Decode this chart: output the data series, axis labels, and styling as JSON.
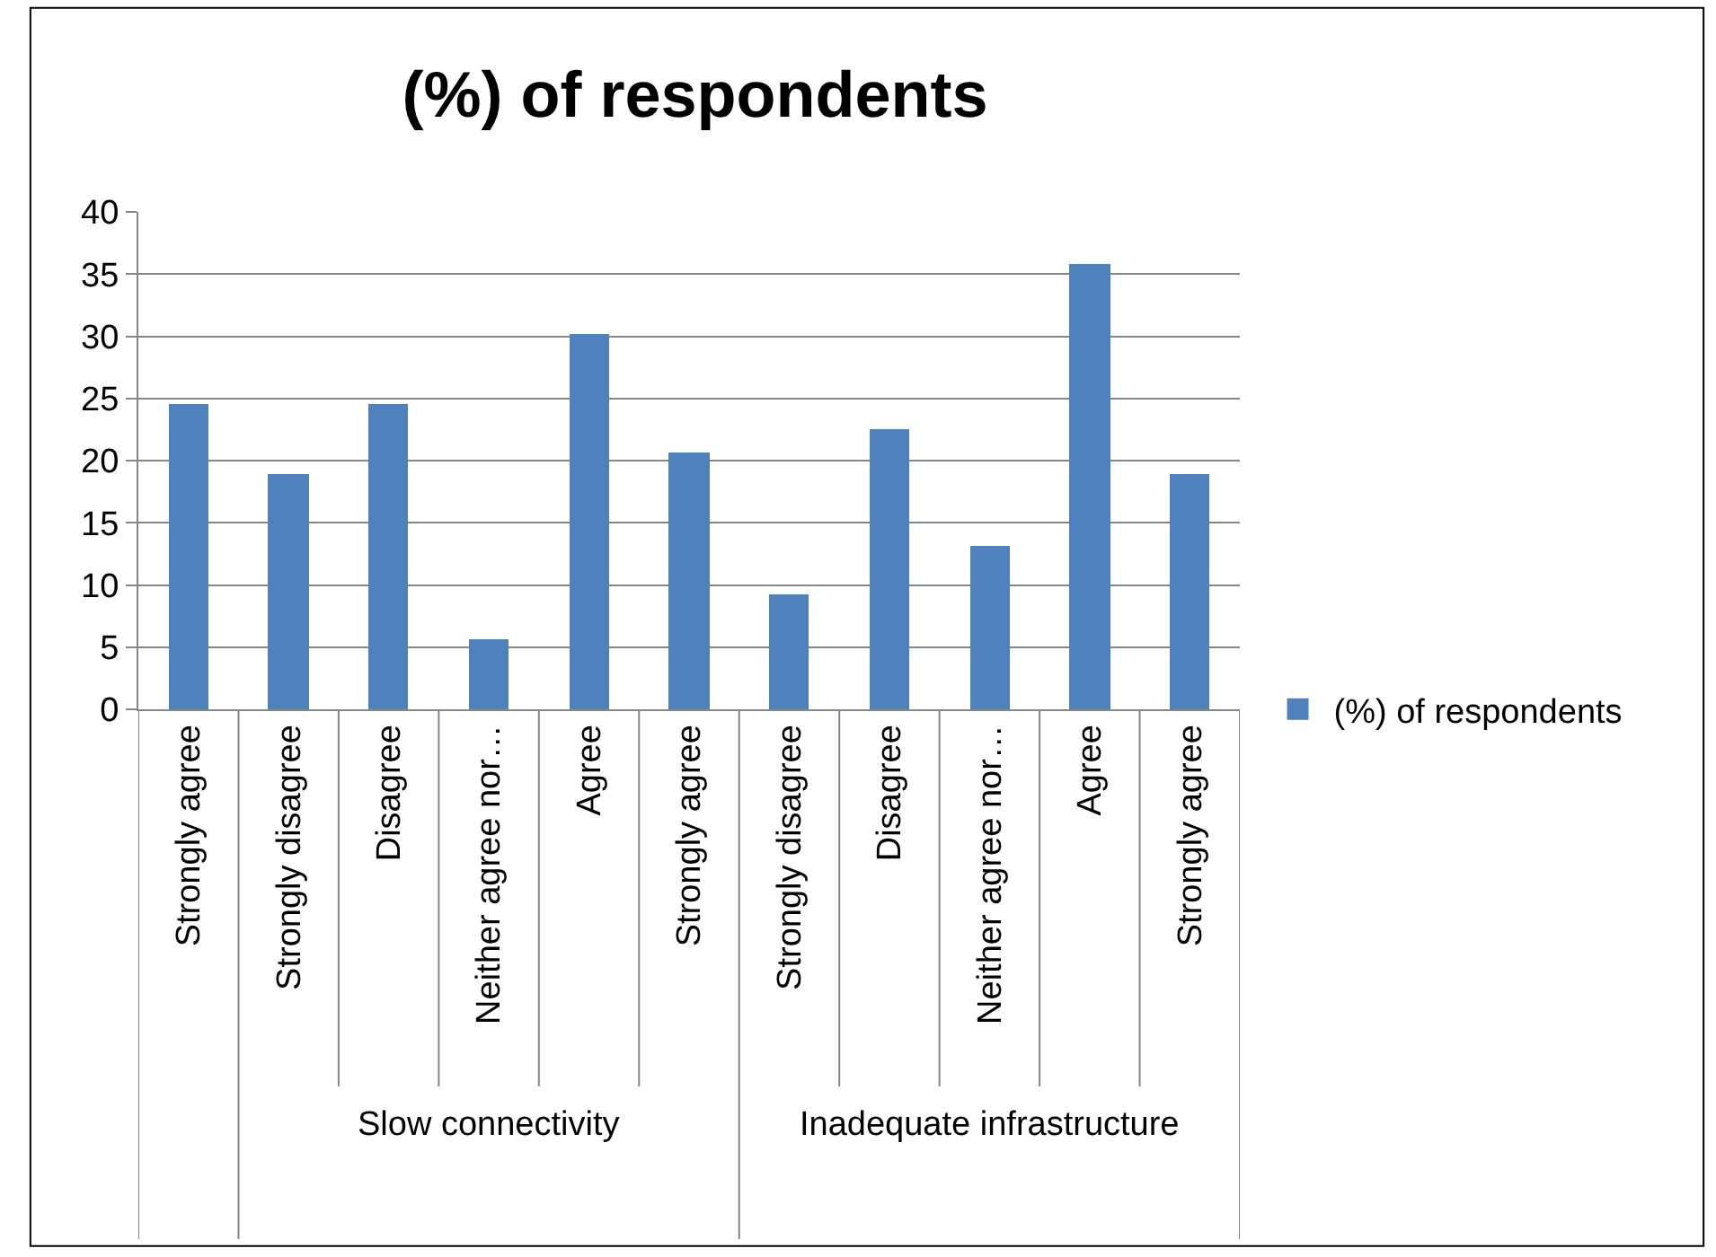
{
  "chart_data": {
    "type": "bar",
    "title": "(%) of respondents",
    "categories": [
      "Strongly agree",
      "Strongly disagree",
      "Disagree",
      "Neither agree nor…",
      "Agree",
      "Strongly agree",
      "Strongly disagree",
      "Disagree",
      "Neither agree nor…",
      "Agree",
      "Strongly agree"
    ],
    "series": [
      {
        "name": "(%) of respondents",
        "color": "#4f81bd",
        "values": [
          24.5,
          18.9,
          24.5,
          5.6,
          30.2,
          20.7,
          9.3,
          22.6,
          13.1,
          35.8,
          18.9
        ]
      }
    ],
    "annotations": [
      "Slow connectivity",
      "Inadequate infrastructure"
    ],
    "ylim": [
      0,
      40
    ],
    "yticks": [
      0,
      5,
      10,
      15,
      20,
      25,
      30,
      35,
      40
    ],
    "grid": "y",
    "legend": "right"
  }
}
